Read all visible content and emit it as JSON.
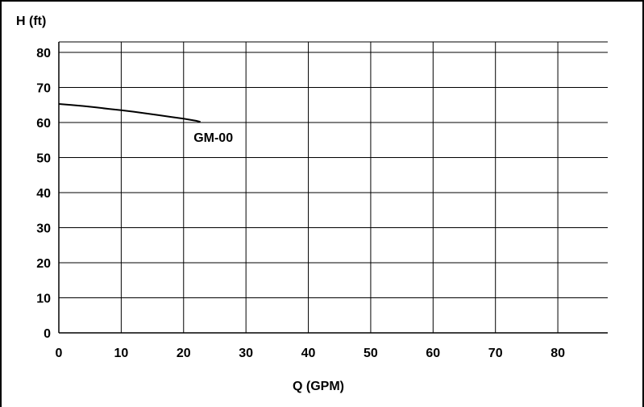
{
  "chart_data": {
    "type": "line",
    "title": "",
    "xlabel": "Q  (GPM)",
    "ylabel": "H  (ft)",
    "xlim": [
      0,
      88
    ],
    "ylim": [
      0,
      83
    ],
    "grid": true,
    "x_ticks": [
      0,
      10,
      20,
      30,
      40,
      50,
      60,
      70,
      80
    ],
    "y_ticks": [
      0,
      10,
      20,
      30,
      40,
      50,
      60,
      70,
      80
    ],
    "series": [
      {
        "name": "GM-00",
        "color": "#000000",
        "x": [
          0,
          2,
          4,
          6,
          8,
          10,
          12,
          14,
          16,
          18,
          20,
          22,
          22.7
        ],
        "y": [
          65.3,
          65.0,
          64.7,
          64.3,
          63.9,
          63.5,
          63.1,
          62.6,
          62.1,
          61.6,
          61.1,
          60.5,
          60.2
        ]
      }
    ]
  }
}
